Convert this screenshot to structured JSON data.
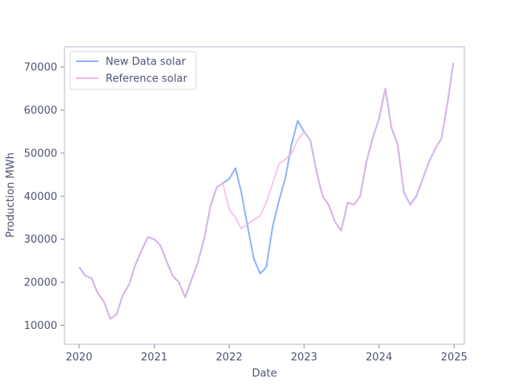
{
  "chart_data": {
    "type": "line",
    "title": "",
    "xlabel": "Date",
    "ylabel": "Production MWh",
    "xlim": [
      "2019-10-22",
      "2025-02-20"
    ],
    "ylim": [
      5600,
      74700
    ],
    "x_ticks": [
      {
        "date": "2020-01-01",
        "label": "2020"
      },
      {
        "date": "2021-01-01",
        "label": "2021"
      },
      {
        "date": "2022-01-01",
        "label": "2022"
      },
      {
        "date": "2023-01-01",
        "label": "2023"
      },
      {
        "date": "2024-01-01",
        "label": "2024"
      },
      {
        "date": "2025-01-01",
        "label": "2025"
      }
    ],
    "y_ticks": [
      {
        "value": 10000,
        "label": "10000"
      },
      {
        "value": 20000,
        "label": "20000"
      },
      {
        "value": 30000,
        "label": "30000"
      },
      {
        "value": 40000,
        "label": "40000"
      },
      {
        "value": 50000,
        "label": "50000"
      },
      {
        "value": 60000,
        "label": "60000"
      },
      {
        "value": 70000,
        "label": "70000"
      }
    ],
    "legend_position": "top-left",
    "grid": false,
    "series": [
      {
        "name": "New Data solar",
        "color": "#8ab4f8",
        "points": [
          [
            "2020-01-01",
            23500
          ],
          [
            "2020-02-01",
            21500
          ],
          [
            "2020-03-01",
            21000
          ],
          [
            "2020-04-01",
            17500
          ],
          [
            "2020-05-01",
            15500
          ],
          [
            "2020-06-01",
            11500
          ],
          [
            "2020-07-01",
            12500
          ],
          [
            "2020-08-01",
            17000
          ],
          [
            "2020-09-01",
            19500
          ],
          [
            "2020-10-01",
            24000
          ],
          [
            "2020-11-01",
            27500
          ],
          [
            "2020-12-01",
            30500
          ],
          [
            "2021-01-01",
            30000
          ],
          [
            "2021-02-01",
            28500
          ],
          [
            "2021-03-01",
            25000
          ],
          [
            "2021-04-01",
            21500
          ],
          [
            "2021-05-01",
            20000
          ],
          [
            "2021-06-01",
            16500
          ],
          [
            "2021-07-01",
            20500
          ],
          [
            "2021-08-01",
            24500
          ],
          [
            "2021-09-01",
            30000
          ],
          [
            "2021-10-01",
            37500
          ],
          [
            "2021-11-01",
            42000
          ],
          [
            "2021-12-01",
            43000
          ],
          [
            "2022-01-01",
            44000
          ],
          [
            "2022-02-01",
            46500
          ],
          [
            "2022-03-01",
            41000
          ],
          [
            "2022-04-01",
            33000
          ],
          [
            "2022-05-01",
            25500
          ],
          [
            "2022-06-01",
            22000
          ],
          [
            "2022-07-01",
            23500
          ],
          [
            "2022-08-01",
            33000
          ],
          [
            "2022-09-01",
            39000
          ],
          [
            "2022-10-01",
            44000
          ],
          [
            "2022-11-01",
            52000
          ],
          [
            "2022-12-01",
            57500
          ],
          [
            "2023-01-01",
            55000
          ],
          [
            "2023-02-01",
            53000
          ],
          [
            "2023-03-01",
            46000
          ],
          [
            "2023-04-01",
            40000
          ],
          [
            "2023-05-01",
            38000
          ],
          [
            "2023-06-01",
            34000
          ],
          [
            "2023-07-01",
            32000
          ],
          [
            "2023-08-01",
            38500
          ],
          [
            "2023-09-01",
            38000
          ],
          [
            "2023-10-01",
            40000
          ],
          [
            "2023-11-01",
            48000
          ],
          [
            "2023-12-01",
            53500
          ],
          [
            "2024-01-01",
            58000
          ],
          [
            "2024-02-01",
            65000
          ],
          [
            "2024-03-01",
            56000
          ],
          [
            "2024-04-01",
            52000
          ],
          [
            "2024-05-01",
            41000
          ],
          [
            "2024-06-01",
            38000
          ],
          [
            "2024-07-01",
            40000
          ],
          [
            "2024-08-01",
            44000
          ],
          [
            "2024-09-01",
            48000
          ],
          [
            "2024-10-01",
            51000
          ],
          [
            "2024-11-01",
            53500
          ],
          [
            "2024-12-01",
            62000
          ],
          [
            "2024-12-28",
            71000
          ]
        ]
      },
      {
        "name": "Reference solar",
        "color": "#f0b4e8",
        "points": [
          [
            "2020-01-01",
            23500
          ],
          [
            "2020-02-01",
            21500
          ],
          [
            "2020-03-01",
            21000
          ],
          [
            "2020-04-01",
            17500
          ],
          [
            "2020-05-01",
            15500
          ],
          [
            "2020-06-01",
            11500
          ],
          [
            "2020-07-01",
            12500
          ],
          [
            "2020-08-01",
            17000
          ],
          [
            "2020-09-01",
            19500
          ],
          [
            "2020-10-01",
            24000
          ],
          [
            "2020-11-01",
            27500
          ],
          [
            "2020-12-01",
            30500
          ],
          [
            "2021-01-01",
            30000
          ],
          [
            "2021-02-01",
            28500
          ],
          [
            "2021-03-01",
            25000
          ],
          [
            "2021-04-01",
            21500
          ],
          [
            "2021-05-01",
            20000
          ],
          [
            "2021-06-01",
            16500
          ],
          [
            "2021-07-01",
            20500
          ],
          [
            "2021-08-01",
            24500
          ],
          [
            "2021-09-01",
            30000
          ],
          [
            "2021-10-01",
            37500
          ],
          [
            "2021-11-01",
            42000
          ],
          [
            "2021-12-01",
            43000
          ],
          [
            "2022-01-01",
            37000
          ],
          [
            "2022-02-01",
            35000
          ],
          [
            "2022-03-01",
            32500
          ],
          [
            "2022-04-01",
            33500
          ],
          [
            "2022-05-01",
            34500
          ],
          [
            "2022-06-01",
            35500
          ],
          [
            "2022-07-01",
            38500
          ],
          [
            "2022-08-01",
            43000
          ],
          [
            "2022-09-01",
            47500
          ],
          [
            "2022-10-01",
            48500
          ],
          [
            "2022-11-01",
            50000
          ],
          [
            "2022-12-01",
            53000
          ],
          [
            "2023-01-01",
            55000
          ],
          [
            "2023-02-01",
            53000
          ],
          [
            "2023-03-01",
            46000
          ],
          [
            "2023-04-01",
            40000
          ],
          [
            "2023-05-01",
            38000
          ],
          [
            "2023-06-01",
            34000
          ],
          [
            "2023-07-01",
            32000
          ],
          [
            "2023-08-01",
            38500
          ],
          [
            "2023-09-01",
            38000
          ],
          [
            "2023-10-01",
            40000
          ],
          [
            "2023-11-01",
            48000
          ],
          [
            "2023-12-01",
            53500
          ],
          [
            "2024-01-01",
            58000
          ],
          [
            "2024-02-01",
            65000
          ],
          [
            "2024-03-01",
            56000
          ],
          [
            "2024-04-01",
            52000
          ],
          [
            "2024-05-01",
            41000
          ],
          [
            "2024-06-01",
            38000
          ],
          [
            "2024-07-01",
            40000
          ],
          [
            "2024-08-01",
            44000
          ],
          [
            "2024-09-01",
            48000
          ],
          [
            "2024-10-01",
            51000
          ],
          [
            "2024-11-01",
            53500
          ],
          [
            "2024-12-01",
            62000
          ],
          [
            "2024-12-28",
            71000
          ]
        ]
      }
    ]
  }
}
